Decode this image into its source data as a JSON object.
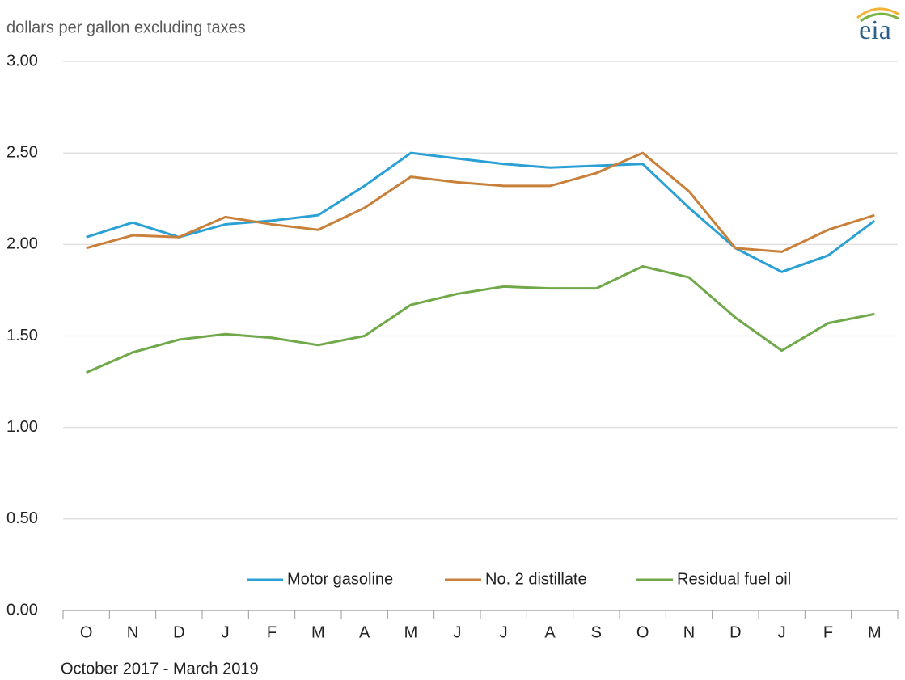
{
  "chart_data": {
    "type": "line",
    "ylabel": "dollars per gallon  excluding taxes",
    "xlabel": "October 2017  -  March 2019",
    "logo": "eia",
    "categories": [
      "O",
      "N",
      "D",
      "J",
      "F",
      "M",
      "A",
      "M",
      "J",
      "J",
      "A",
      "S",
      "O",
      "N",
      "D",
      "J",
      "F",
      "M"
    ],
    "series": [
      {
        "name": "Motor gasoline",
        "color": "#2aa0d4",
        "values": [
          2.04,
          2.12,
          2.04,
          2.11,
          2.13,
          2.16,
          2.32,
          2.5,
          2.47,
          2.44,
          2.42,
          2.43,
          2.44,
          2.2,
          1.98,
          1.85,
          1.94,
          2.13
        ]
      },
      {
        "name": "No. 2 distillate",
        "color": "#c8803a",
        "values": [
          1.98,
          2.05,
          2.04,
          2.15,
          2.11,
          2.08,
          2.2,
          2.37,
          2.34,
          2.32,
          2.32,
          2.39,
          2.5,
          2.29,
          1.98,
          1.96,
          2.08,
          2.16
        ]
      },
      {
        "name": "Residual fuel oil",
        "color": "#70a84a",
        "values": [
          1.3,
          1.41,
          1.48,
          1.51,
          1.49,
          1.45,
          1.5,
          1.67,
          1.73,
          1.77,
          1.76,
          1.76,
          1.88,
          1.82,
          1.6,
          1.42,
          1.57,
          1.62
        ]
      }
    ],
    "ylim": [
      0,
      3
    ],
    "yticks": [
      {
        "value": 0,
        "label": "0.00"
      },
      {
        "value": 0.5,
        "label": "0.50"
      },
      {
        "value": 1,
        "label": "1.00"
      },
      {
        "value": 1.5,
        "label": "1.50"
      },
      {
        "value": 2,
        "label": "2.00"
      },
      {
        "value": 2.5,
        "label": "2.50"
      },
      {
        "value": 3,
        "label": "3.00"
      }
    ],
    "grid": true,
    "legend": "bottom"
  }
}
